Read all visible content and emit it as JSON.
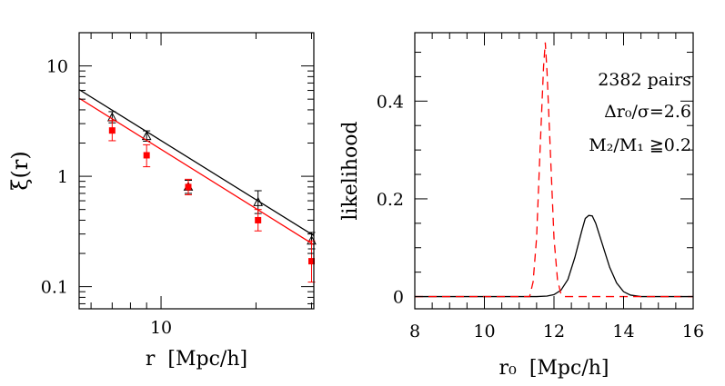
{
  "chart_data": [
    {
      "type": "scatter",
      "xlabel": "r  [Mpc/h]",
      "ylabel": "ξ(r)",
      "xscale": "log",
      "yscale": "log",
      "xlim": [
        5.5,
        30.5
      ],
      "ylim": [
        0.063,
        20
      ],
      "xticks": [
        {
          "value": 10,
          "label": "10"
        }
      ],
      "yticks": [
        {
          "value": 0.1,
          "label": "0.1"
        },
        {
          "value": 1,
          "label": "1"
        },
        {
          "value": 10,
          "label": "10"
        }
      ],
      "series": [
        {
          "marker": "open-triangle",
          "color": "#000000",
          "x": [
            7.0,
            9.0,
            12.2,
            20.3,
            30.0
          ],
          "y": [
            3.4,
            2.3,
            0.8,
            0.58,
            0.26
          ],
          "yerr_lo": [
            0.35,
            0.22,
            0.1,
            0.12,
            0.04
          ],
          "yerr_hi": [
            0.45,
            0.28,
            0.12,
            0.16,
            0.05
          ]
        },
        {
          "marker": "filled-square",
          "color": "#ff0000",
          "x": [
            7.0,
            9.0,
            12.2,
            20.3,
            30.0
          ],
          "y": [
            2.6,
            1.55,
            0.8,
            0.4,
            0.17
          ],
          "yerr_lo": [
            0.5,
            0.33,
            0.12,
            0.08,
            0.06
          ],
          "yerr_hi": [
            0.6,
            0.38,
            0.14,
            0.1,
            0.09
          ]
        },
        {
          "type": "line",
          "color": "#000000",
          "x": [
            5.5,
            30.5
          ],
          "y": [
            6.1,
            0.29
          ]
        },
        {
          "type": "line",
          "color": "#ff0000",
          "x": [
            5.5,
            30.5
          ],
          "y": [
            5.1,
            0.24
          ]
        }
      ]
    },
    {
      "type": "line",
      "xlabel": "r₀  [Mpc/h]",
      "ylabel": "likelihood",
      "xlim": [
        8,
        16
      ],
      "ylim": [
        -0.025,
        0.54
      ],
      "xticks": [
        8,
        10,
        12,
        14,
        16
      ],
      "yticks": [
        {
          "value": 0,
          "label": "0"
        },
        {
          "value": 0.2,
          "label": "0.2"
        },
        {
          "value": 0.4,
          "label": "0.4"
        }
      ],
      "annotations": [
        "2382 pairs",
        "Δr₀/σ=2.6",
        "M₂/M₁ ≧0.2"
      ],
      "series": [
        {
          "style": "solid",
          "color": "#000000",
          "x": [
            8,
            11.5,
            11.8,
            12.0,
            12.2,
            12.4,
            12.6,
            12.8,
            12.9,
            13.0,
            13.1,
            13.2,
            13.4,
            13.6,
            13.8,
            14.0,
            14.2,
            14.5,
            16
          ],
          "y": [
            0,
            0,
            0.001,
            0.004,
            0.013,
            0.035,
            0.08,
            0.135,
            0.16,
            0.166,
            0.165,
            0.15,
            0.105,
            0.06,
            0.028,
            0.01,
            0.003,
            0,
            0
          ]
        },
        {
          "style": "dashed",
          "color": "#ff0000",
          "x": [
            8,
            11.3,
            11.4,
            11.5,
            11.6,
            11.7,
            11.75,
            11.8,
            11.9,
            12.0,
            12.1,
            12.2,
            12.3,
            16
          ],
          "y": [
            0,
            0,
            0.03,
            0.12,
            0.3,
            0.47,
            0.52,
            0.46,
            0.29,
            0.12,
            0.035,
            0.005,
            0,
            0
          ]
        }
      ]
    }
  ]
}
